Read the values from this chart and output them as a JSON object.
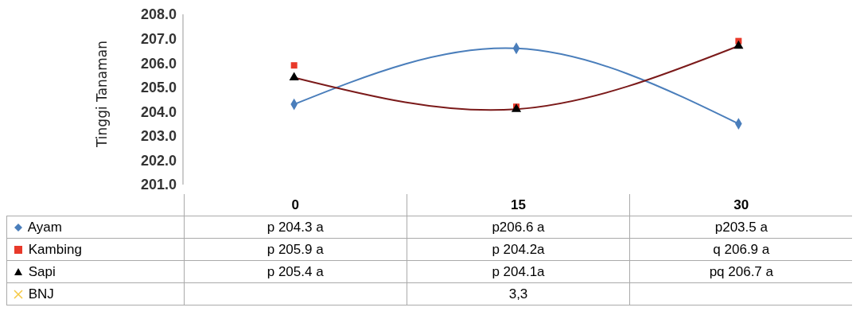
{
  "chart_data": {
    "type": "line",
    "ylabel": "Tinggi Tanaman",
    "categories": [
      "0",
      "15",
      "30"
    ],
    "ylim": [
      201,
      208
    ],
    "yticks": [
      {
        "value": 201,
        "label": "201.0"
      },
      {
        "value": 202,
        "label": "202.0"
      },
      {
        "value": 203,
        "label": "203.0"
      },
      {
        "value": 204,
        "label": "204.0"
      },
      {
        "value": 205,
        "label": "205.0"
      },
      {
        "value": 206,
        "label": "206.0"
      },
      {
        "value": 207,
        "label": "207.0"
      },
      {
        "value": 208,
        "label": "208.0"
      }
    ],
    "legend": "bottom",
    "series": [
      {
        "name": "Ayam",
        "type": "line",
        "color": "#4a7ebb",
        "marker": "diamond",
        "values": [
          204.3,
          206.6,
          203.5
        ],
        "value_labels": [
          "p 204.3 a",
          "p206.6 a",
          "p203.5 a"
        ]
      },
      {
        "name": "Kambing",
        "type": "scatter",
        "color": "#e8392a",
        "marker": "square",
        "values": [
          205.9,
          204.2,
          206.9
        ],
        "value_labels": [
          "p 205.9 a",
          "p 204.2a",
          "q 206.9 a"
        ]
      },
      {
        "name": "Sapi",
        "type": "scatter",
        "color": "#000000",
        "marker": "triangle",
        "values": [
          205.4,
          204.1,
          206.7
        ],
        "value_labels": [
          "p 205.4 a",
          "p 204.1a",
          "pq 206.7 a"
        ]
      },
      {
        "name": "BNJ",
        "type": "scatter",
        "color": "#f5c842",
        "marker": "cross",
        "values": [
          null,
          null,
          null
        ],
        "value_labels": [
          null,
          "3,3",
          null
        ]
      },
      {
        "type": "line",
        "color": "#7b1a1a",
        "marker": "none",
        "values": [
          205.4,
          204.1,
          206.7
        ]
      }
    ]
  }
}
